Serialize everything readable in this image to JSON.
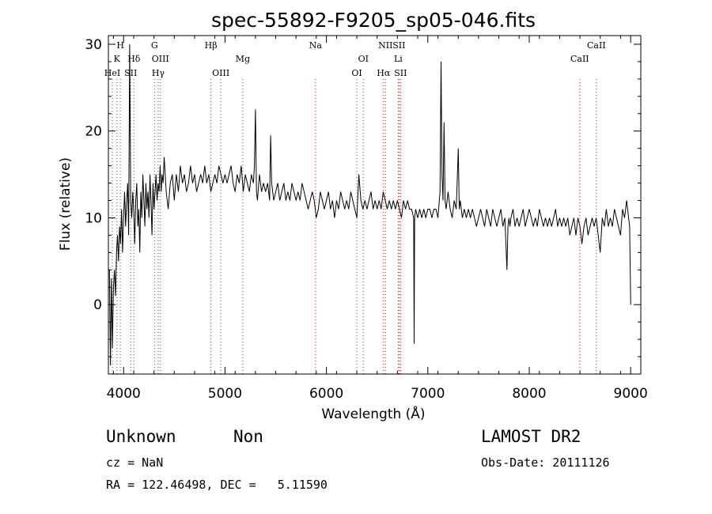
{
  "chart_data": {
    "type": "line",
    "title": "spec-55892-F9205_sp05-046.fits",
    "xlabel": "Wavelength (Å)",
    "ylabel": "Flux (relative)",
    "xlim": [
      3850,
      9100
    ],
    "ylim": [
      -8,
      31
    ],
    "xticks": [
      4000,
      5000,
      6000,
      7000,
      8000,
      9000
    ],
    "yticks": [
      0,
      10,
      20,
      30
    ],
    "grid": false,
    "spectral_lines": [
      {
        "label": "H",
        "x": 3968,
        "row": 0,
        "color": "#555555"
      },
      {
        "label": "K",
        "x": 3934,
        "row": 1,
        "color": "#555555"
      },
      {
        "label": "HeI",
        "x": 3889,
        "row": 2,
        "color": "#555555"
      },
      {
        "label": "SII",
        "x": 4070,
        "row": 2,
        "color": "#555555"
      },
      {
        "label": "Hδ",
        "x": 4102,
        "row": 1,
        "color": "#555555"
      },
      {
        "label": "G",
        "x": 4305,
        "row": 0,
        "color": "#555555"
      },
      {
        "label": "OIII",
        "x": 4363,
        "row": 1,
        "color": "#555555"
      },
      {
        "label": "Hγ",
        "x": 4341,
        "row": 2,
        "color": "#555555"
      },
      {
        "label": "Hβ",
        "x": 4861,
        "row": 0,
        "color": "#555555"
      },
      {
        "label": "OIII",
        "x": 4959,
        "row": 2,
        "color": "#555555"
      },
      {
        "label": "Mg",
        "x": 5175,
        "row": 1,
        "color": "#555555"
      },
      {
        "label": "Na",
        "x": 5893,
        "row": 0,
        "color": "#cc3333"
      },
      {
        "label": "OI",
        "x": 6364,
        "row": 1,
        "color": "#555555"
      },
      {
        "label": "OI",
        "x": 6300,
        "row": 2,
        "color": "#555555"
      },
      {
        "label": "NII",
        "x": 6583,
        "row": 0,
        "color": "#555555"
      },
      {
        "label": "Hα",
        "x": 6563,
        "row": 2,
        "color": "#cc3333"
      },
      {
        "label": "SII",
        "x": 6716,
        "row": 0,
        "color": "#cc3333"
      },
      {
        "label": "Li",
        "x": 6708,
        "row": 1,
        "color": "#555555"
      },
      {
        "label": "SII",
        "x": 6731,
        "row": 2,
        "color": "#cc3333"
      },
      {
        "label": "CaII",
        "x": 8662,
        "row": 0,
        "color": "#555555"
      },
      {
        "label": "CaII",
        "x": 8498,
        "row": 1,
        "color": "#cc3333"
      }
    ],
    "series": [
      {
        "x": [
          3860,
          3870,
          3880,
          3890,
          3900,
          3910,
          3920,
          3930,
          3940,
          3950,
          3960,
          3970,
          3980,
          3990,
          4000,
          4010,
          4020,
          4030,
          4040,
          4050,
          4060,
          4070,
          4080,
          4090,
          4100,
          4110,
          4120,
          4130,
          4140,
          4150,
          4160,
          4170,
          4180,
          4190,
          4200,
          4210,
          4220,
          4230,
          4240,
          4250,
          4260,
          4270,
          4280,
          4290,
          4300,
          4310,
          4320,
          4330,
          4340,
          4350,
          4360,
          4370,
          4380,
          4390,
          4400,
          4420,
          4440,
          4460,
          4480,
          4500,
          4520,
          4540,
          4560,
          4580,
          4600,
          4620,
          4640,
          4660,
          4680,
          4700,
          4720,
          4740,
          4760,
          4780,
          4800,
          4820,
          4840,
          4860,
          4880,
          4900,
          4920,
          4940,
          4960,
          4980,
          5000,
          5020,
          5040,
          5060,
          5080,
          5100,
          5120,
          5140,
          5160,
          5180,
          5200,
          5220,
          5240,
          5260,
          5280,
          5290,
          5300,
          5310,
          5320,
          5340,
          5360,
          5380,
          5400,
          5420,
          5440,
          5450,
          5460,
          5480,
          5500,
          5520,
          5540,
          5560,
          5580,
          5600,
          5620,
          5640,
          5660,
          5680,
          5700,
          5720,
          5740,
          5760,
          5780,
          5800,
          5820,
          5840,
          5860,
          5880,
          5900,
          5920,
          5940,
          5960,
          5980,
          6000,
          6020,
          6040,
          6060,
          6080,
          6100,
          6120,
          6140,
          6160,
          6180,
          6200,
          6220,
          6240,
          6260,
          6280,
          6300,
          6320,
          6340,
          6360,
          6380,
          6400,
          6420,
          6440,
          6460,
          6480,
          6500,
          6520,
          6540,
          6560,
          6580,
          6600,
          6620,
          6640,
          6660,
          6680,
          6700,
          6720,
          6740,
          6760,
          6780,
          6800,
          6820,
          6840,
          6860,
          6865,
          6870,
          6880,
          6900,
          6920,
          6940,
          6960,
          6980,
          7000,
          7020,
          7040,
          7060,
          7080,
          7100,
          7120,
          7130,
          7140,
          7150,
          7160,
          7170,
          7180,
          7200,
          7220,
          7240,
          7260,
          7280,
          7300,
          7310,
          7320,
          7340,
          7360,
          7380,
          7400,
          7420,
          7440,
          7460,
          7480,
          7500,
          7520,
          7540,
          7560,
          7580,
          7600,
          7620,
          7640,
          7660,
          7680,
          7700,
          7720,
          7740,
          7760,
          7780,
          7790,
          7800,
          7810,
          7820,
          7840,
          7860,
          7880,
          7900,
          7920,
          7940,
          7960,
          7980,
          8000,
          8020,
          8040,
          8060,
          8080,
          8100,
          8120,
          8140,
          8160,
          8180,
          8200,
          8220,
          8240,
          8260,
          8280,
          8300,
          8320,
          8340,
          8360,
          8380,
          8400,
          8420,
          8440,
          8460,
          8480,
          8500,
          8520,
          8540,
          8560,
          8580,
          8600,
          8620,
          8640,
          8660,
          8680,
          8700,
          8720,
          8740,
          8760,
          8780,
          8800,
          8820,
          8840,
          8860,
          8880,
          8900,
          8920,
          8940,
          8960,
          8980,
          8990,
          9000
        ],
        "values": [
          4,
          -7,
          3,
          -5,
          2,
          4,
          1,
          6,
          8,
          5,
          9,
          7,
          11,
          6,
          10,
          13,
          9,
          12,
          14,
          8,
          30,
          12,
          10,
          13,
          11,
          7,
          12,
          14,
          9,
          11,
          6,
          13,
          10,
          15,
          12,
          9,
          14,
          11,
          13,
          10,
          15,
          12,
          8,
          14,
          11,
          13,
          15,
          12,
          14,
          13,
          16,
          13,
          15,
          14,
          17,
          13,
          11,
          14,
          15,
          12,
          15,
          13,
          16,
          14,
          15,
          13,
          14,
          16,
          14,
          15,
          13,
          14,
          15,
          14,
          16,
          14,
          15,
          13,
          14,
          15,
          14,
          16,
          15,
          14,
          15,
          14,
          15,
          16,
          14,
          13,
          15,
          14,
          16,
          13,
          15,
          14,
          13,
          15,
          14,
          16,
          22.5,
          13,
          12,
          15,
          13,
          14,
          13,
          14,
          12,
          19.5,
          14,
          12,
          13,
          14,
          12,
          13,
          14,
          12,
          13,
          12,
          14,
          13,
          12,
          13,
          12,
          14,
          13,
          12,
          11,
          12,
          13,
          12,
          10,
          11,
          13,
          12,
          11,
          12,
          13,
          11,
          12,
          10,
          12,
          11,
          13,
          12,
          11,
          12,
          11,
          13,
          12,
          11,
          10,
          15,
          12,
          11,
          12,
          11,
          12,
          13,
          11,
          12,
          11,
          12,
          11,
          13,
          12,
          11,
          12,
          11,
          12,
          11,
          12,
          11,
          10,
          12,
          11,
          12,
          11,
          11,
          10,
          -4.5,
          10,
          11,
          10,
          11,
          10,
          11,
          10,
          11,
          11,
          10,
          11,
          11,
          10,
          13,
          28,
          15,
          12,
          21,
          12,
          11,
          13,
          11,
          10,
          12,
          11,
          18,
          11,
          12,
          10,
          11,
          10,
          11,
          10,
          11,
          10,
          9,
          10,
          11,
          10,
          9,
          11,
          10,
          9,
          11,
          10,
          9,
          10,
          11,
          9,
          10,
          4,
          9,
          10,
          9,
          10,
          11,
          9,
          10,
          9,
          10,
          11,
          9,
          10,
          11,
          10,
          9,
          10,
          9,
          11,
          10,
          9,
          10,
          9,
          10,
          9,
          10,
          11,
          9,
          10,
          9,
          10,
          9,
          10,
          8,
          9,
          10,
          8,
          10,
          9,
          7,
          9,
          10,
          8,
          9,
          10,
          9,
          10,
          8,
          6,
          10,
          9,
          11,
          9,
          10,
          9,
          11,
          10,
          9,
          8,
          11,
          10,
          12,
          10,
          9,
          0
        ]
      }
    ]
  },
  "info": {
    "class_label": "Unknown",
    "subclass_label": "Non",
    "cz_text": "cz = NaN",
    "coords_text": "RA = 122.46498, DEC =   5.11590",
    "survey_label": "LAMOST DR2",
    "obs_date_text": "Obs-Date: 20111126"
  }
}
